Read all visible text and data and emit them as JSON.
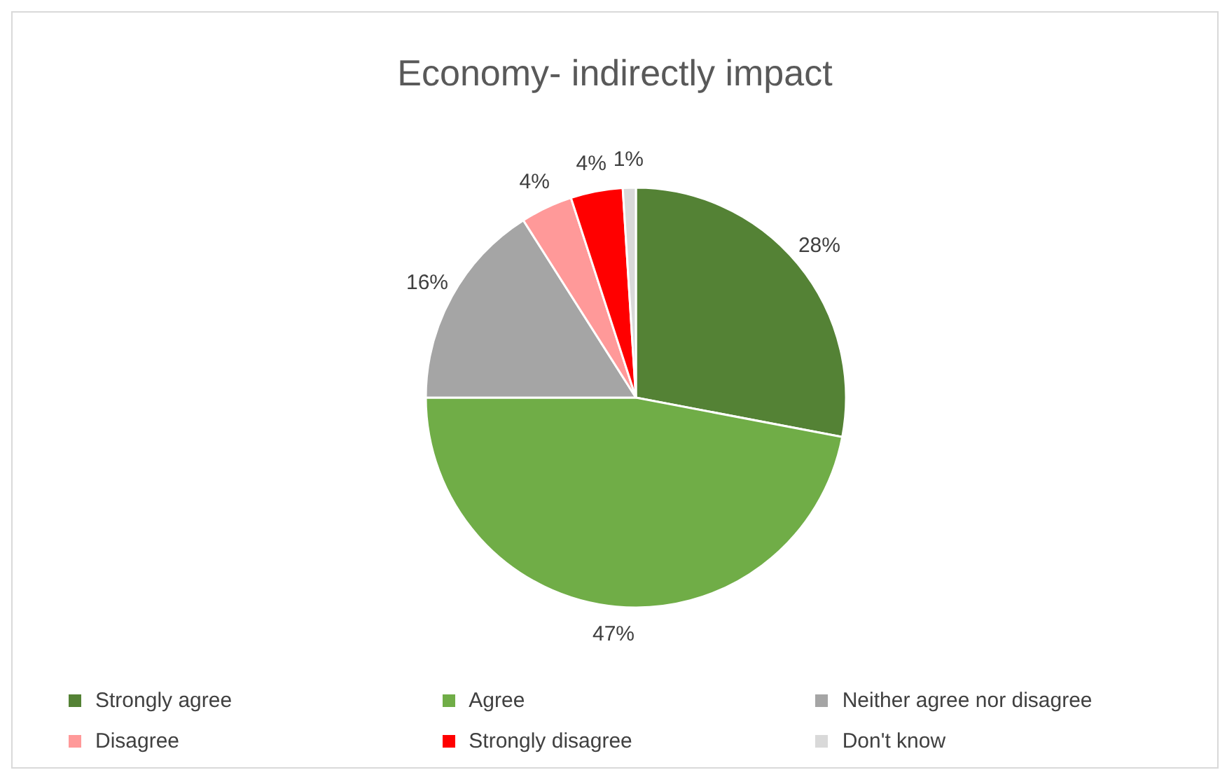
{
  "chart_data": {
    "type": "pie",
    "title": "Economy- indirectly impact",
    "categories": [
      "Strongly agree",
      "Agree",
      "Neither agree nor disagree",
      "Disagree",
      "Strongly disagree",
      "Don't know"
    ],
    "values": [
      28,
      47,
      16,
      4,
      4,
      1
    ],
    "colors": [
      "#548235",
      "#70ad47",
      "#a5a5a5",
      "#ff9999",
      "#ff0000",
      "#d9d9d9"
    ],
    "value_labels": [
      "28%",
      "47%",
      "16%",
      "4%",
      "4%",
      "1%"
    ],
    "legend": "bottom"
  }
}
